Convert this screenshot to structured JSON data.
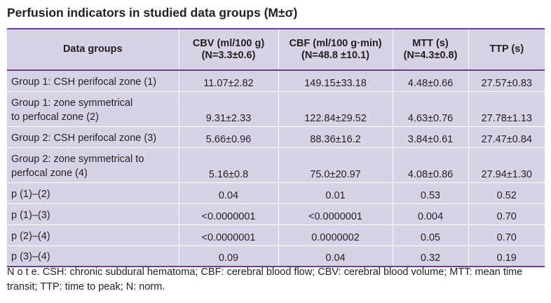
{
  "title": "Perfusion indicators in studied data groups (M±σ)",
  "table": {
    "headers": [
      [
        "Data groups"
      ],
      [
        "CBV (ml/100 g)",
        "(N=3.3±0.6)"
      ],
      [
        "CBF (ml/100 g·min)",
        "(N=48.8 ±10.1)"
      ],
      [
        "MTT (s)",
        "(N=4.3±0.8)"
      ],
      [
        "TTP (s)"
      ]
    ],
    "rows": [
      {
        "label": [
          "Group 1: CSH perifocal zone (1)"
        ],
        "cells": [
          "11.07±2.82",
          "149.15±33.18",
          "4.48±0.66",
          "27.57±0.83"
        ]
      },
      {
        "label": [
          "Group 1: zone symmetrical",
          "to perfocal zone (2)"
        ],
        "cells": [
          "9.31±2.33",
          "122.84±29.52",
          "4.63±0.76",
          "27.78±1.13"
        ]
      },
      {
        "label": [
          "Group 2: CSH perifocal zone (3)"
        ],
        "cells": [
          "5.66±0.96",
          "88.36±16.2",
          "3.84±0.61",
          "27.47±0.84"
        ]
      },
      {
        "label": [
          "Group 2: zone symmetrical to",
          "perfocal zone (4)"
        ],
        "cells": [
          "5.16±0.8",
          "75.0±20.97",
          "4.08±0.86",
          "27.94±1.30"
        ]
      },
      {
        "label": [
          "p (1)–(2)"
        ],
        "cells": [
          "0.04",
          "0.01",
          "0.53",
          "0.52"
        ]
      },
      {
        "label": [
          "p (1)–(3)"
        ],
        "cells": [
          "<0.0000001",
          "<0.0000001",
          "0.004",
          "0.70"
        ]
      },
      {
        "label": [
          "p (2)–(4)"
        ],
        "cells": [
          "<0.0000001",
          "0.0000002",
          "0.05",
          "0.70"
        ]
      },
      {
        "label": [
          "p (3)–(4)"
        ],
        "cells": [
          "0.09",
          "0.04",
          "0.32",
          "0.19"
        ]
      }
    ]
  },
  "note": {
    "lead": "N o t e.",
    "text": " CSH: chronic subdural hematoma; CBF: cerebral blood flow; CBV: cerebral blood volume; MTT: mean time transit; TTP: time to peak; N: norm."
  },
  "colors": {
    "row_fill": "#d8d2e7",
    "rule": "#6e3f8c",
    "text": "#231f20"
  }
}
